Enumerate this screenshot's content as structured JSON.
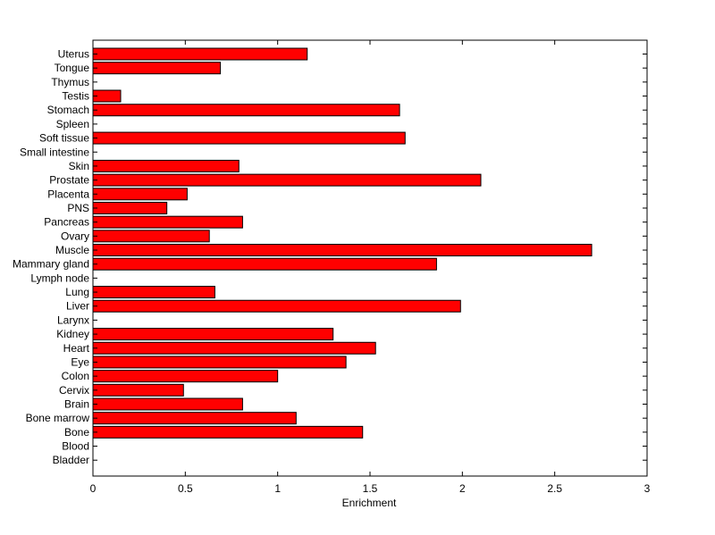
{
  "chart_data": {
    "type": "bar",
    "orientation": "horizontal",
    "xlabel": "Enrichment",
    "ylabel": "",
    "title": "",
    "xlim": [
      0,
      3
    ],
    "xticks": [
      0,
      0.5,
      1,
      1.5,
      2,
      2.5,
      3
    ],
    "xtick_labels": [
      "0",
      "0.5",
      "1",
      "1.5",
      "2",
      "2.5",
      "3"
    ],
    "grid": false,
    "bar_color": "#ff0000",
    "categories": [
      "Uterus",
      "Tongue",
      "Thymus",
      "Testis",
      "Stomach",
      "Spleen",
      "Soft tissue",
      "Small intestine",
      "Skin",
      "Prostate",
      "Placenta",
      "PNS",
      "Pancreas",
      "Ovary",
      "Muscle",
      "Mammary gland",
      "Lymph node",
      "Lung",
      "Liver",
      "Larynx",
      "Kidney",
      "Heart",
      "Eye",
      "Colon",
      "Cervix",
      "Brain",
      "Bone marrow",
      "Bone",
      "Blood",
      "Bladder"
    ],
    "values": [
      1.16,
      0.69,
      0,
      0.15,
      1.66,
      0,
      1.69,
      0,
      0.79,
      2.1,
      0.51,
      0.4,
      0.81,
      0.63,
      2.7,
      1.86,
      0,
      0.66,
      1.99,
      0,
      1.3,
      1.53,
      1.37,
      1.0,
      0.49,
      0.81,
      1.1,
      1.46,
      0,
      0
    ]
  }
}
